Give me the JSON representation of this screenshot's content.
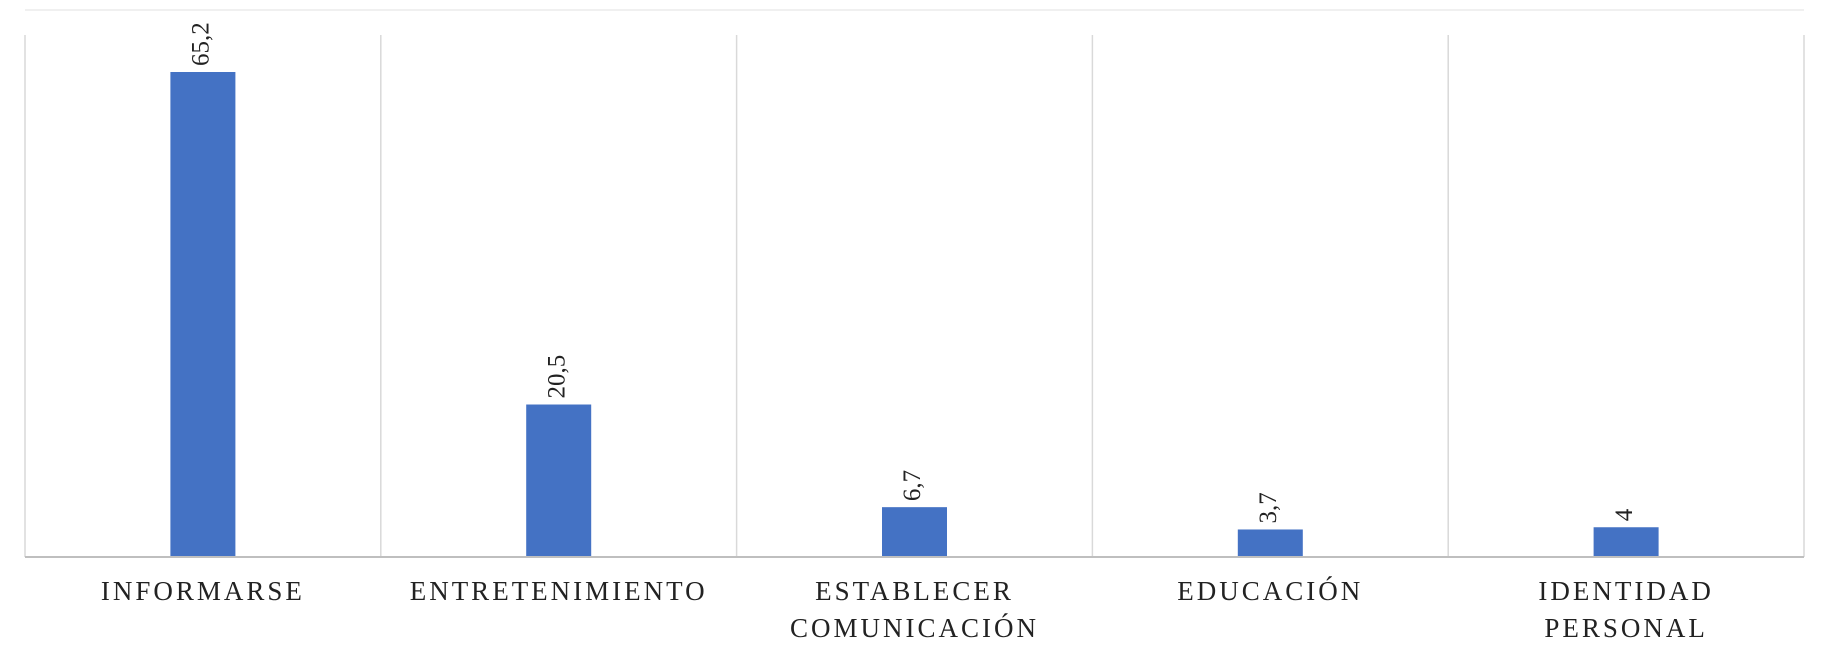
{
  "chart_data": {
    "type": "bar",
    "categories": [
      [
        "INFORMARSE"
      ],
      [
        "ENTRETENIMIENTO"
      ],
      [
        "ESTABLECER",
        "COMUNICACIÓN"
      ],
      [
        "EDUCACIÓN"
      ],
      [
        "IDENTIDAD",
        "PERSONAL"
      ]
    ],
    "values": [
      65.2,
      20.5,
      6.7,
      3.7,
      4
    ],
    "data_labels": [
      "65,2",
      "20,5",
      "6,7",
      "3,7",
      "4"
    ],
    "title": "",
    "xlabel": "",
    "ylabel": "",
    "ylim": [
      0,
      70
    ],
    "grid": "vertical category separators",
    "legend": "none",
    "colors": {
      "bar": "#4472C4",
      "grid": "#d9d9d9",
      "axis": "#bfbfbf",
      "text": "#222222"
    }
  }
}
